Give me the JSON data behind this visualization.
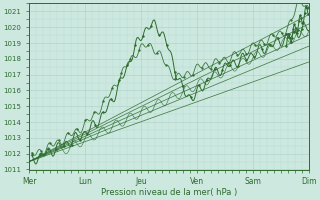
{
  "xlabel": "Pression niveau de la mer( hPa )",
  "ylim": [
    1011,
    1021.5
  ],
  "xlim": [
    0,
    5
  ],
  "yticks": [
    1011,
    1012,
    1013,
    1014,
    1015,
    1016,
    1017,
    1018,
    1019,
    1020,
    1021
  ],
  "xtick_labels": [
    "Mer",
    "Lun",
    "Jeu",
    "Ven",
    "Sam",
    "Dim"
  ],
  "xtick_pos": [
    0,
    1,
    2,
    3,
    4,
    5
  ],
  "background_color": "#cce8df",
  "grid_major_color": "#aacfc7",
  "grid_minor_color": "#b8ddd5",
  "line_color": "#2d6b2d",
  "fig_bg": "#cce8df",
  "fan_lines": [
    {
      "x0": 0.0,
      "y0": 1011.5,
      "x1": 5.0,
      "y1": 1017.8
    },
    {
      "x0": 0.0,
      "y0": 1011.5,
      "x1": 5.0,
      "y1": 1018.8
    },
    {
      "x0": 0.0,
      "y0": 1011.5,
      "x1": 5.0,
      "y1": 1019.5
    },
    {
      "x0": 0.0,
      "y0": 1011.5,
      "x1": 5.0,
      "y1": 1020.2
    },
    {
      "x0": 0.0,
      "y0": 1011.5,
      "x1": 5.0,
      "y1": 1020.8
    }
  ]
}
